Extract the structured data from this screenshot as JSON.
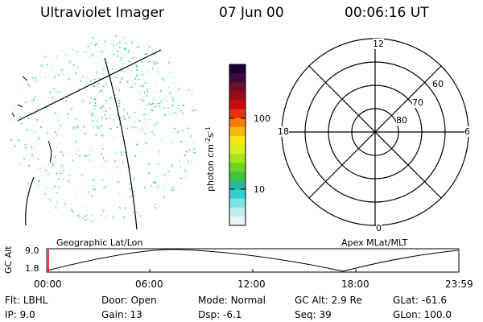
{
  "header": {
    "instrument": "Ultraviolet Imager",
    "date": "07 Jun 00",
    "time": "00:06:16 UT"
  },
  "colorbar": {
    "unit_label": "photon cm",
    "tick_labels": [
      "100",
      "10"
    ],
    "colors": [
      "#1a0033",
      "#3d0a3d",
      "#6b0f2a",
      "#9b0d13",
      "#c90a10",
      "#e8320a",
      "#f77d0a",
      "#fbb414",
      "#f7e619",
      "#d6f021",
      "#a2e61b",
      "#6fd41e",
      "#3cc43c",
      "#2ab89a",
      "#33cfd0",
      "#7ee3e3",
      "#bdeeee",
      "#e6f6f6"
    ]
  },
  "polar": {
    "mlt_labels": {
      "top": "12",
      "bottom": "0",
      "left": "18",
      "right": "6"
    },
    "lat_labels": [
      "60",
      "70",
      "80"
    ]
  },
  "map": {
    "left_label": "Geographic Lat/Lon",
    "right_label": "Apex MLat/MLT"
  },
  "orbit": {
    "ylabel": "GC Alt",
    "y_ticks": [
      "9.0",
      "1.8"
    ],
    "x_ticks": [
      "00:00",
      "06:00",
      "12:00",
      "18:00",
      "23:59"
    ]
  },
  "info": {
    "row1": [
      {
        "label": "Flt:",
        "value": "LBHL"
      },
      {
        "label": "Door:",
        "value": "Open"
      },
      {
        "label": "Mode:",
        "value": "Normal"
      },
      {
        "label": "GC Alt:",
        "value": "2.9 Re"
      },
      {
        "label": "GLat:",
        "value": "-61.6"
      }
    ],
    "row2": [
      {
        "label": "IP:",
        "value": "9.0"
      },
      {
        "label": "Gain:",
        "value": "13"
      },
      {
        "label": "Dsp:",
        "value": "-6.1"
      },
      {
        "label": "Seq:",
        "value": "39"
      },
      {
        "label": "GLon:",
        "value": "100.0"
      }
    ]
  }
}
